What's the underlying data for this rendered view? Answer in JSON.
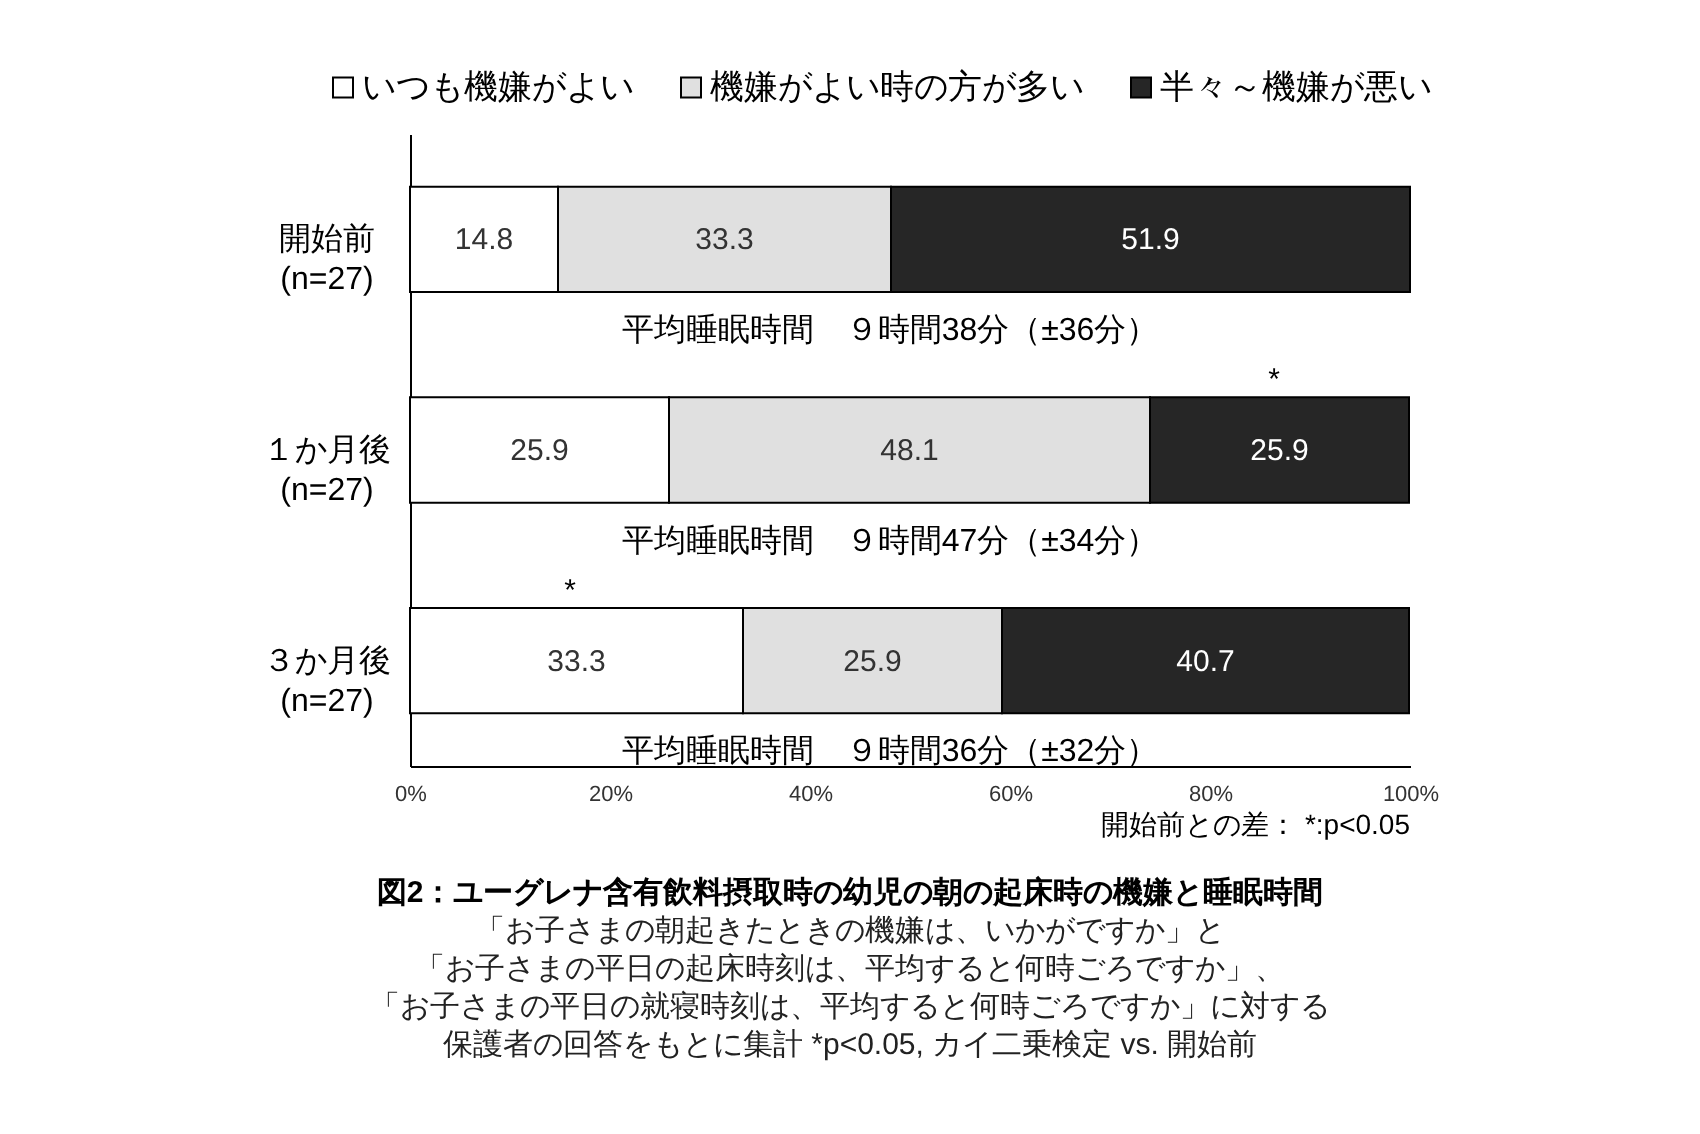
{
  "chart_data": {
    "type": "bar",
    "orientation": "horizontal",
    "stacked": true,
    "title": "図2：ユーグレナ含有飲料摂取時の幼児の朝の起床時の機嫌と睡眠時間",
    "subtitle": "「お子さまの朝起きたときの機嫌は、いかがですか」と「お子さまの平日の起床時刻は、平均すると何時ごろですか」、「お子さまの平日の就寝時刻は、平均すると何時ごろですか」に対する保護者の回答をもとに集計 *p<0.05, カイ二乗検定 vs. 開始前",
    "categories": [
      "開始前\n(n=27)",
      "１か月後\n(n=27)",
      "３か月後\n(n=27)"
    ],
    "series": [
      {
        "name": "いつも機嫌がよい",
        "color": "#ffffff",
        "values": [
          14.8,
          25.9,
          33.3
        ]
      },
      {
        "name": "機嫌がよい時の方が多い",
        "color": "#e0e0e0",
        "values": [
          33.3,
          48.1,
          25.9
        ]
      },
      {
        "name": "半々～機嫌が悪い",
        "color": "#262626",
        "values": [
          51.9,
          25.9,
          40.7
        ]
      }
    ],
    "xlim": [
      0,
      100
    ],
    "xticks": [
      {
        "value": 0,
        "label": "0%"
      },
      {
        "value": 20,
        "label": "20%"
      },
      {
        "value": 40,
        "label": "40%"
      },
      {
        "value": 60,
        "label": "60%"
      },
      {
        "value": 80,
        "label": "80%"
      },
      {
        "value": 100,
        "label": "100%"
      }
    ],
    "legend": "top",
    "data_labels": true,
    "annotations": [
      "平均睡眠時間　９時間38分（±36分）",
      "平均睡眠時間　９時間47分（±34分）",
      "平均睡眠時間　９時間36分（±32分）",
      "*",
      "*",
      "開始前との差： *:p<0.05"
    ]
  }
}
